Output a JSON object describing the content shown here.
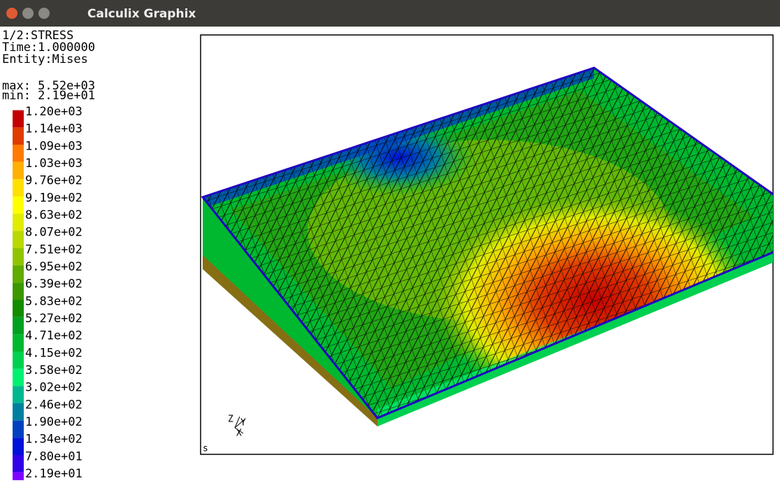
{
  "window": {
    "title": "Calculix Graphix"
  },
  "info": {
    "lines": [
      "1/2:STRESS",
      "Time:1.000000",
      "Entity:Mises"
    ],
    "max": "max: 5.52e+03",
    "min": "min: 2.19e+01"
  },
  "legend": [
    {
      "label": "1.20e+03",
      "color": "#c40000"
    },
    {
      "label": "1.14e+03",
      "color": "#e03c00"
    },
    {
      "label": "1.09e+03",
      "color": "#ff7a00"
    },
    {
      "label": "1.03e+03",
      "color": "#ffb000"
    },
    {
      "label": "9.76e+02",
      "color": "#ffe000"
    },
    {
      "label": "9.19e+02",
      "color": "#ffff00"
    },
    {
      "label": "8.63e+02",
      "color": "#e0ec00"
    },
    {
      "label": "8.07e+02",
      "color": "#b8d800"
    },
    {
      "label": "7.51e+02",
      "color": "#90c400"
    },
    {
      "label": "6.95e+02",
      "color": "#60ac00"
    },
    {
      "label": "6.39e+02",
      "color": "#3c9800"
    },
    {
      "label": "5.83e+02",
      "color": "#138c00"
    },
    {
      "label": "5.27e+02",
      "color": "#00a020"
    },
    {
      "label": "4.71e+02",
      "color": "#00b830"
    },
    {
      "label": "4.15e+02",
      "color": "#00d050"
    },
    {
      "label": "3.58e+02",
      "color": "#00f070"
    },
    {
      "label": "3.02e+02",
      "color": "#00b890"
    },
    {
      "label": "2.46e+02",
      "color": "#0080a0"
    },
    {
      "label": "1.90e+02",
      "color": "#0040c0"
    },
    {
      "label": "1.34e+02",
      "color": "#0010d8"
    },
    {
      "label": "7.80e+01",
      "color": "#3000e8"
    },
    {
      "label": "2.19e+01",
      "color": "#8000ff"
    }
  ],
  "viewport": {
    "triad": {
      "z": "Z",
      "y": "Y",
      "x": "X"
    },
    "corner_label": "s"
  }
}
